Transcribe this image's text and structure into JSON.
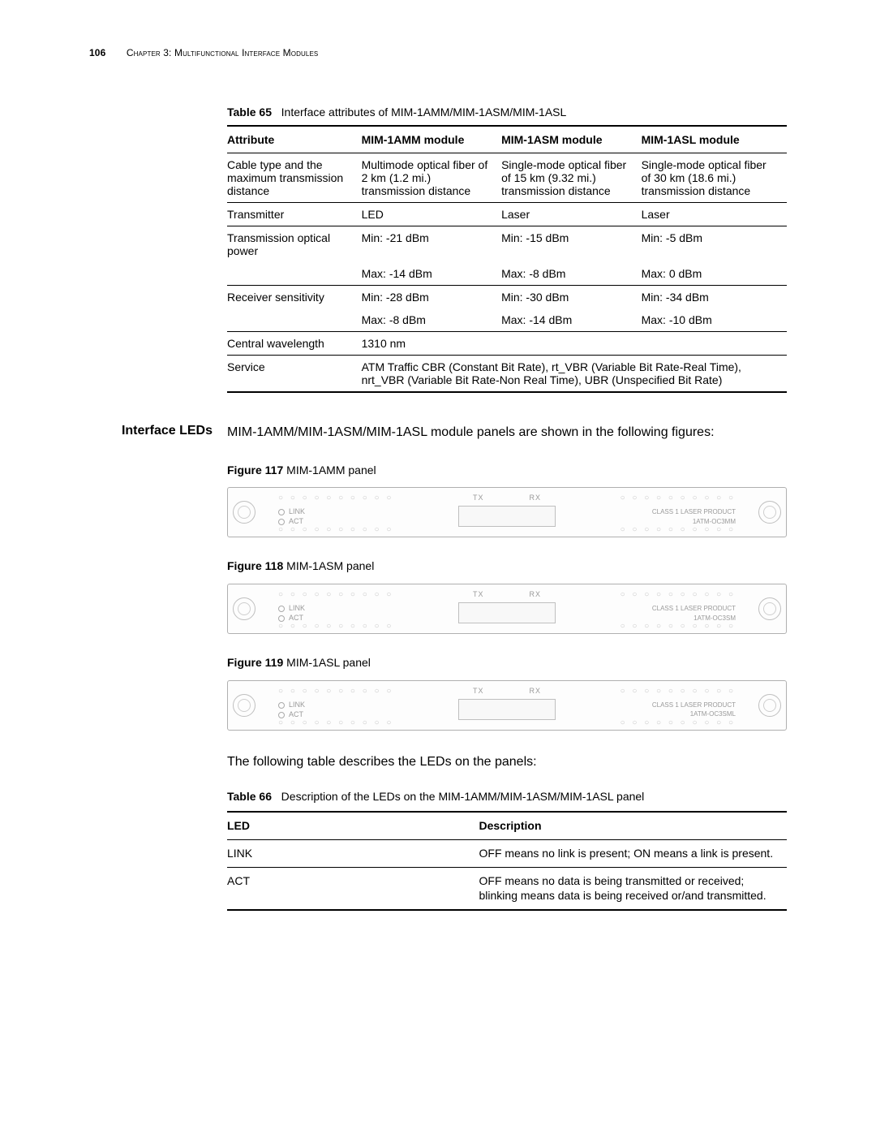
{
  "header": {
    "page_number": "106",
    "chapter": "Chapter 3: Multifunctional Interface Modules"
  },
  "table65": {
    "title_bold": "Table 65",
    "title_rest": "Interface attributes of MIM-1AMM/MIM-1ASM/MIM-1ASL",
    "columns": [
      "Attribute",
      "MIM-1AMM module",
      "MIM-1ASM module",
      "MIM-1ASL module"
    ],
    "col_widths": [
      "24%",
      "25%",
      "25%",
      "26%"
    ],
    "rows": [
      {
        "sep": true,
        "cells": [
          "Cable type and the maximum transmission distance",
          "Multimode optical fiber of 2 km (1.2 mi.) transmission distance",
          "Single-mode optical fiber of 15 km (9.32 mi.) transmission distance",
          "Single-mode optical fiber of 30 km (18.6 mi.) transmission distance"
        ]
      },
      {
        "sep": true,
        "cells": [
          "Transmitter",
          "LED",
          "Laser",
          "Laser"
        ]
      },
      {
        "sep": true,
        "cells": [
          "Transmission optical power",
          "Min: -21 dBm",
          "Min: -15 dBm",
          "Min: -5 dBm"
        ]
      },
      {
        "sep": false,
        "cells": [
          "",
          "Max: -14 dBm",
          "Max: -8 dBm",
          "Max: 0 dBm"
        ]
      },
      {
        "sep": true,
        "cells": [
          "Receiver sensitivity",
          "Min: -28 dBm",
          "Min: -30 dBm",
          "Min: -34 dBm"
        ]
      },
      {
        "sep": false,
        "cells": [
          "",
          "Max: -8 dBm",
          "Max: -14 dBm",
          "Max: -10 dBm"
        ]
      },
      {
        "sep": true,
        "cells": [
          "Central wavelength",
          "1310 nm",
          "",
          ""
        ],
        "merge_cw": true
      },
      {
        "sep": true,
        "cells": [
          "Service",
          "ATM Traffic CBR (Constant Bit Rate), rt_VBR (Variable Bit Rate-Real Time), nrt_VBR (Variable Bit Rate-Non Real Time), UBR (Unspecified Bit Rate)"
        ],
        "merge_service": true
      }
    ]
  },
  "interface_leds": {
    "heading": "Interface LEDs",
    "intro": "MIM-1AMM/MIM-1ASM/MIM-1ASL module panels are shown in the following figures:"
  },
  "figures": [
    {
      "bold": "Figure 117",
      "rest": "MIM-1AMM panel",
      "model": "1ATM-OC3MM"
    },
    {
      "bold": "Figure 118",
      "rest": "MIM-1ASM panel",
      "model": "1ATM-OC3SM"
    },
    {
      "bold": "Figure 119",
      "rest": "MIM-1ASL panel",
      "model": "1ATM-OC3SML"
    }
  ],
  "panel_text": {
    "link": "LINK",
    "act": "ACT",
    "tx": "TX",
    "rx": "RX",
    "class": "CLASS 1 LASER PRODUCT",
    "dot_row": "○ ○ ○ ○ ○ ○ ○ ○ ○ ○"
  },
  "led_paragraph": "The following table describes the LEDs on the panels:",
  "table66": {
    "title_bold": "Table 66",
    "title_rest": "Description of the LEDs on the MIM-1AMM/MIM-1ASM/MIM-1ASL panel",
    "columns": [
      "LED",
      "Description"
    ],
    "col_widths": [
      "45%",
      "55%"
    ],
    "rows": [
      [
        "LINK",
        "OFF means no link is present; ON means a link is present."
      ],
      [
        "ACT",
        "OFF means no data is being transmitted or received; blinking means data is being received or/and transmitted."
      ]
    ]
  }
}
